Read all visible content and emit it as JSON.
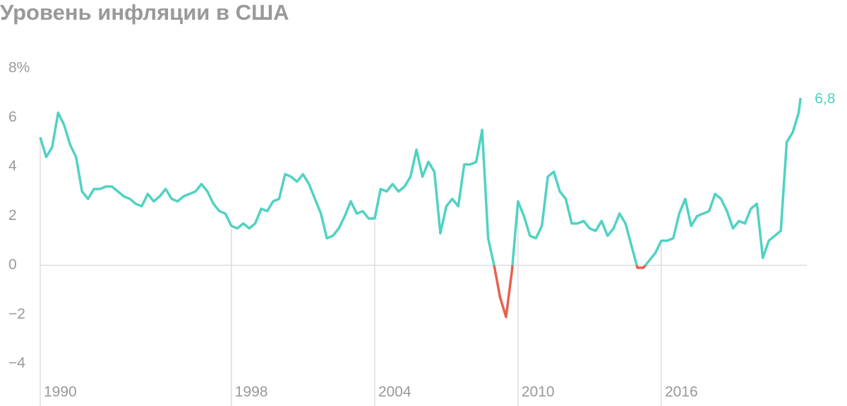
{
  "chart_data": {
    "type": "line",
    "title": "Уровень инфляции в США",
    "x": [
      1990,
      1990.25,
      1990.5,
      1990.75,
      1991,
      1991.25,
      1991.5,
      1991.75,
      1992,
      1992.25,
      1992.5,
      1992.75,
      1993,
      1993.25,
      1993.5,
      1993.75,
      1994,
      1994.25,
      1994.5,
      1994.75,
      1995,
      1995.25,
      1995.5,
      1995.75,
      1996,
      1996.25,
      1996.5,
      1996.75,
      1997,
      1997.25,
      1997.5,
      1997.75,
      1998,
      1998.25,
      1998.5,
      1998.75,
      1999,
      1999.25,
      1999.5,
      1999.75,
      2000,
      2000.25,
      2000.5,
      2000.75,
      2001,
      2001.25,
      2001.5,
      2001.75,
      2002,
      2002.25,
      2002.5,
      2002.75,
      2003,
      2003.25,
      2003.5,
      2003.75,
      2004,
      2004.25,
      2004.5,
      2004.75,
      2005,
      2005.25,
      2005.5,
      2005.75,
      2006,
      2006.25,
      2006.5,
      2006.75,
      2007,
      2007.25,
      2007.5,
      2007.75,
      2008,
      2008.25,
      2008.5,
      2008.75,
      2009,
      2009.25,
      2009.5,
      2009.75,
      2010,
      2010.25,
      2010.5,
      2010.75,
      2011,
      2011.25,
      2011.5,
      2011.75,
      2012,
      2012.25,
      2012.5,
      2012.75,
      2013,
      2013.25,
      2013.5,
      2013.75,
      2014,
      2014.25,
      2014.5,
      2014.75,
      2015,
      2015.25,
      2015.5,
      2015.75,
      2016,
      2016.25,
      2016.5,
      2016.75,
      2017,
      2017.25,
      2017.5,
      2017.75,
      2018,
      2018.25,
      2018.5,
      2018.75,
      2019,
      2019.25,
      2019.5,
      2019.75,
      2020,
      2020.25,
      2020.5,
      2020.75,
      2021,
      2021.25,
      2021.5,
      2021.75,
      2021.83
    ],
    "series": [
      {
        "color": "#50d2c2",
        "negative_color": "#e8604c",
        "values": [
          5.2,
          4.4,
          4.8,
          6.2,
          5.7,
          4.9,
          4.4,
          3.0,
          2.7,
          3.1,
          3.1,
          3.2,
          3.2,
          3.0,
          2.8,
          2.7,
          2.5,
          2.4,
          2.9,
          2.6,
          2.8,
          3.1,
          2.7,
          2.6,
          2.8,
          2.9,
          3.0,
          3.3,
          3.0,
          2.5,
          2.2,
          2.1,
          1.6,
          1.5,
          1.7,
          1.5,
          1.7,
          2.3,
          2.2,
          2.6,
          2.7,
          3.7,
          3.6,
          3.4,
          3.7,
          3.3,
          2.7,
          2.1,
          1.1,
          1.2,
          1.5,
          2.0,
          2.6,
          2.1,
          2.2,
          1.9,
          1.9,
          3.1,
          3.0,
          3.3,
          3.0,
          3.2,
          3.6,
          4.7,
          3.6,
          4.2,
          3.8,
          1.3,
          2.4,
          2.7,
          2.4,
          4.1,
          4.1,
          4.2,
          5.5,
          1.1,
          0.0,
          -1.3,
          -2.1,
          -0.2,
          2.6,
          2.0,
          1.2,
          1.1,
          1.6,
          3.6,
          3.8,
          3.0,
          2.7,
          1.7,
          1.7,
          1.8,
          1.5,
          1.4,
          1.8,
          1.2,
          1.5,
          2.1,
          1.7,
          0.8,
          -0.1,
          -0.1,
          0.2,
          0.5,
          1.0,
          1.0,
          1.1,
          2.1,
          2.7,
          1.6,
          2.0,
          2.1,
          2.2,
          2.9,
          2.7,
          2.2,
          1.5,
          1.8,
          1.7,
          2.3,
          2.5,
          0.3,
          1.0,
          1.2,
          1.4,
          5.0,
          5.4,
          6.2,
          6.8
        ]
      }
    ],
    "annotations": [
      {
        "label": "6,8",
        "value": 6.8
      }
    ],
    "xlim": [
      1990,
      2022
    ],
    "xticks": [
      1990,
      1998,
      2004,
      2010,
      2016
    ],
    "ylim": [
      -5.4,
      8
    ],
    "yticks": [
      {
        "value": 8,
        "label": "8%"
      },
      6,
      4,
      2,
      0,
      {
        "value": -2,
        "label": "−2"
      },
      {
        "value": -4,
        "label": "−4"
      }
    ]
  }
}
